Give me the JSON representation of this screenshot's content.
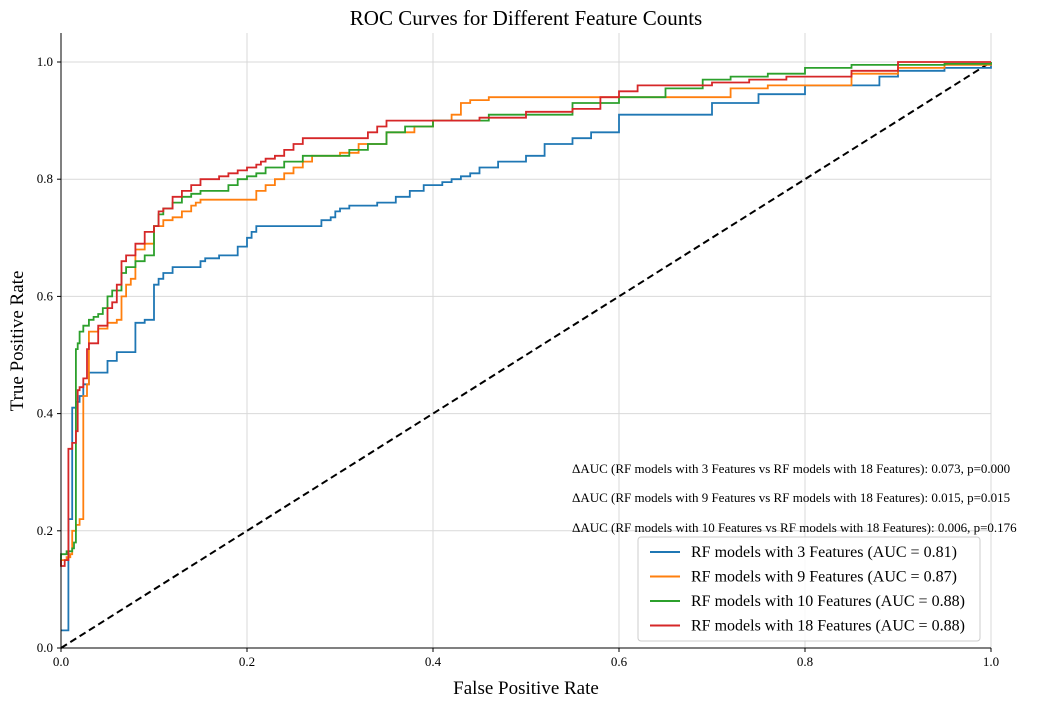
{
  "chart_data": {
    "type": "line",
    "title": "ROC Curves for Different Feature Counts",
    "xlabel": "False Positive Rate",
    "ylabel": "True Positive Rate",
    "xlim": [
      0,
      1
    ],
    "ylim": [
      0,
      1.05
    ],
    "xticks": [
      "0.0",
      "0.2",
      "0.4",
      "0.6",
      "0.8",
      "1.0"
    ],
    "yticks": [
      "0.0",
      "0.2",
      "0.4",
      "0.6",
      "0.8",
      "1.0"
    ],
    "grid": true,
    "legend_position": "lower-right",
    "series": [
      {
        "name": "RF models with 3 Features (AUC = 0.81)",
        "color": "#1f77b4",
        "x": [
          0,
          0,
          0.008,
          0.008,
          0.012,
          0.012,
          0.016,
          0.02,
          0.024,
          0.024,
          0.03,
          0.03,
          0.05,
          0.06,
          0.07,
          0.08,
          0.08,
          0.085,
          0.09,
          0.1,
          0.1,
          0.105,
          0.105,
          0.11,
          0.12,
          0.13,
          0.15,
          0.155,
          0.16,
          0.17,
          0.18,
          0.19,
          0.19,
          0.2,
          0.2,
          0.205,
          0.205,
          0.21,
          0.22,
          0.26,
          0.28,
          0.29,
          0.295,
          0.3,
          0.31,
          0.33,
          0.34,
          0.35,
          0.36,
          0.375,
          0.39,
          0.41,
          0.42,
          0.43,
          0.44,
          0.45,
          0.47,
          0.5,
          0.52,
          0.55,
          0.57,
          0.6,
          0.65,
          0.7,
          0.75,
          0.8,
          0.85,
          0.88,
          0.9,
          0.95,
          1.0
        ],
        "y": [
          0.03,
          0.03,
          0.055,
          0.22,
          0.25,
          0.41,
          0.42,
          0.43,
          0.44,
          0.45,
          0.46,
          0.47,
          0.49,
          0.505,
          0.505,
          0.545,
          0.555,
          0.555,
          0.56,
          0.57,
          0.62,
          0.62,
          0.63,
          0.64,
          0.65,
          0.65,
          0.66,
          0.665,
          0.665,
          0.67,
          0.67,
          0.68,
          0.685,
          0.69,
          0.7,
          0.7,
          0.71,
          0.72,
          0.72,
          0.72,
          0.73,
          0.735,
          0.745,
          0.75,
          0.755,
          0.755,
          0.76,
          0.76,
          0.77,
          0.78,
          0.79,
          0.795,
          0.8,
          0.805,
          0.81,
          0.82,
          0.83,
          0.84,
          0.86,
          0.87,
          0.88,
          0.91,
          0.91,
          0.93,
          0.945,
          0.96,
          0.96,
          0.975,
          0.985,
          0.99,
          1.0
        ]
      },
      {
        "name": "RF models with 9 Features (AUC = 0.87)",
        "color": "#ff7f0e",
        "x": [
          0,
          0,
          0.006,
          0.01,
          0.012,
          0.016,
          0.02,
          0.024,
          0.024,
          0.028,
          0.03,
          0.03,
          0.04,
          0.05,
          0.06,
          0.065,
          0.065,
          0.07,
          0.075,
          0.08,
          0.08,
          0.09,
          0.1,
          0.1,
          0.11,
          0.12,
          0.13,
          0.13,
          0.14,
          0.145,
          0.15,
          0.2,
          0.21,
          0.22,
          0.23,
          0.24,
          0.25,
          0.26,
          0.27,
          0.3,
          0.32,
          0.35,
          0.38,
          0.4,
          0.42,
          0.43,
          0.44,
          0.46,
          0.5,
          0.55,
          0.6,
          0.65,
          0.68,
          0.72,
          0.76,
          0.8,
          0.85,
          0.9,
          0.95,
          1.0
        ],
        "y": [
          0.14,
          0.15,
          0.155,
          0.16,
          0.2,
          0.21,
          0.22,
          0.23,
          0.43,
          0.45,
          0.52,
          0.54,
          0.545,
          0.555,
          0.56,
          0.565,
          0.6,
          0.62,
          0.63,
          0.64,
          0.68,
          0.69,
          0.69,
          0.72,
          0.73,
          0.735,
          0.74,
          0.745,
          0.755,
          0.76,
          0.765,
          0.765,
          0.78,
          0.79,
          0.8,
          0.81,
          0.82,
          0.83,
          0.84,
          0.845,
          0.86,
          0.88,
          0.89,
          0.9,
          0.91,
          0.93,
          0.935,
          0.94,
          0.94,
          0.94,
          0.94,
          0.94,
          0.94,
          0.955,
          0.96,
          0.96,
          0.98,
          0.99,
          0.995,
          1.0
        ]
      },
      {
        "name": "RF models with 10 Features (AUC = 0.88)",
        "color": "#2ca02c",
        "x": [
          0,
          0,
          0.006,
          0.012,
          0.014,
          0.016,
          0.018,
          0.02,
          0.024,
          0.03,
          0.035,
          0.04,
          0.045,
          0.05,
          0.055,
          0.065,
          0.07,
          0.08,
          0.09,
          0.1,
          0.1,
          0.105,
          0.11,
          0.12,
          0.13,
          0.14,
          0.15,
          0.16,
          0.17,
          0.18,
          0.18,
          0.19,
          0.2,
          0.21,
          0.22,
          0.24,
          0.26,
          0.3,
          0.31,
          0.33,
          0.35,
          0.37,
          0.4,
          0.42,
          0.46,
          0.5,
          0.55,
          0.6,
          0.65,
          0.69,
          0.72,
          0.76,
          0.8,
          0.85,
          0.9,
          0.95,
          1.0
        ],
        "y": [
          0.15,
          0.16,
          0.165,
          0.17,
          0.18,
          0.51,
          0.52,
          0.54,
          0.55,
          0.56,
          0.565,
          0.57,
          0.58,
          0.6,
          0.61,
          0.64,
          0.65,
          0.66,
          0.67,
          0.71,
          0.72,
          0.74,
          0.75,
          0.76,
          0.77,
          0.775,
          0.78,
          0.78,
          0.78,
          0.785,
          0.79,
          0.8,
          0.805,
          0.81,
          0.82,
          0.83,
          0.84,
          0.84,
          0.85,
          0.86,
          0.88,
          0.89,
          0.9,
          0.9,
          0.91,
          0.91,
          0.93,
          0.94,
          0.955,
          0.97,
          0.975,
          0.98,
          0.99,
          0.995,
          0.995,
          0.997,
          1.0
        ]
      },
      {
        "name": "RF models with 18 Features (AUC = 0.88)",
        "color": "#d62728",
        "x": [
          0,
          0,
          0.004,
          0.008,
          0.008,
          0.012,
          0.016,
          0.018,
          0.02,
          0.024,
          0.028,
          0.03,
          0.04,
          0.05,
          0.055,
          0.06,
          0.065,
          0.065,
          0.07,
          0.08,
          0.09,
          0.1,
          0.105,
          0.11,
          0.12,
          0.13,
          0.14,
          0.15,
          0.16,
          0.17,
          0.18,
          0.19,
          0.2,
          0.21,
          0.215,
          0.22,
          0.23,
          0.24,
          0.25,
          0.26,
          0.3,
          0.33,
          0.34,
          0.35,
          0.36,
          0.4,
          0.45,
          0.5,
          0.55,
          0.58,
          0.6,
          0.62,
          0.66,
          0.7,
          0.74,
          0.78,
          0.85,
          0.9,
          0.95,
          1.0
        ],
        "y": [
          0.15,
          0.14,
          0.15,
          0.17,
          0.34,
          0.35,
          0.37,
          0.44,
          0.445,
          0.46,
          0.51,
          0.52,
          0.55,
          0.58,
          0.59,
          0.62,
          0.64,
          0.66,
          0.67,
          0.69,
          0.71,
          0.72,
          0.745,
          0.75,
          0.77,
          0.78,
          0.79,
          0.8,
          0.8,
          0.805,
          0.81,
          0.815,
          0.82,
          0.825,
          0.83,
          0.835,
          0.84,
          0.85,
          0.86,
          0.87,
          0.87,
          0.88,
          0.89,
          0.9,
          0.9,
          0.9,
          0.905,
          0.915,
          0.92,
          0.94,
          0.95,
          0.96,
          0.96,
          0.965,
          0.97,
          0.975,
          0.985,
          1.0,
          1.0,
          1.0
        ]
      }
    ],
    "reference_line": {
      "x": [
        0,
        1
      ],
      "y": [
        0,
        1
      ],
      "color": "#000000",
      "style": "dashed"
    },
    "annotations": [
      "ΔAUC (RF models with 3 Features vs RF models with 18 Features): 0.073, p=0.000",
      "ΔAUC (RF models with 9 Features vs RF models with 18 Features): 0.015, p=0.015",
      "ΔAUC (RF models with 10 Features vs RF models with 18 Features): 0.006, p=0.176"
    ]
  }
}
